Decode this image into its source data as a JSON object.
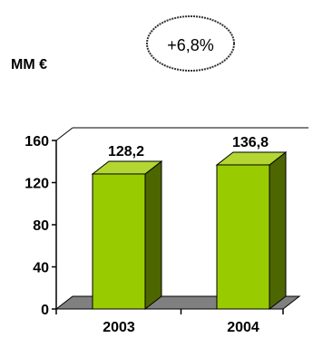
{
  "header": {
    "unit_label": "MM €",
    "growth_annotation": "+6,8%"
  },
  "chart_data": {
    "type": "bar",
    "title": "",
    "xlabel": "",
    "ylabel": "MM €",
    "categories": [
      "2003",
      "2004"
    ],
    "values": [
      128.2,
      136.8
    ],
    "data_labels": [
      "128,2",
      "136,8"
    ],
    "ylim": [
      0,
      160
    ],
    "yticks": [
      0,
      40,
      80,
      120,
      160
    ],
    "ytick_labels": [
      "0",
      "40",
      "80",
      "120",
      "160"
    ],
    "annotation": "+6,8%",
    "grid": false,
    "legend": "none",
    "style": "3d-bar",
    "colors": {
      "bar_front": "#99cc00",
      "bar_side": "#4d6600",
      "bar_top": "#b3d633",
      "floor": "#808080",
      "axis": "#000000"
    }
  }
}
